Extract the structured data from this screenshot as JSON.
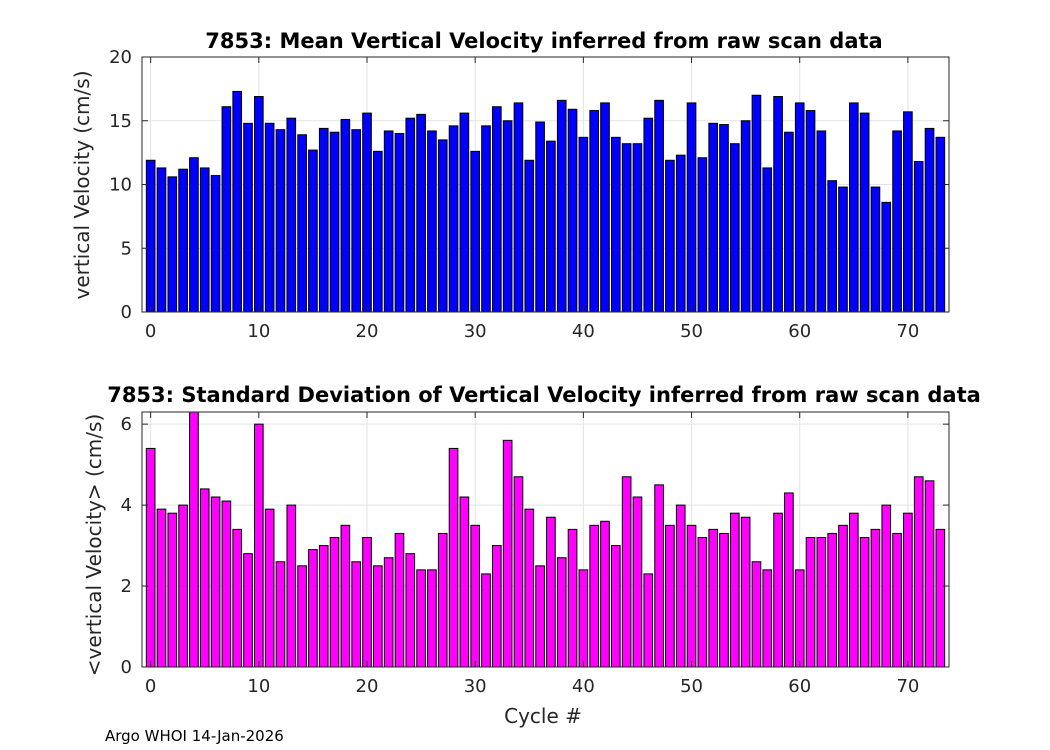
{
  "footer": "Argo WHOI 14-Jan-2026",
  "chart_data": [
    {
      "type": "bar",
      "title": "7853: Mean Vertical Velocity inferred from raw scan data",
      "xlabel": "",
      "ylabel": "vertical Velocity (cm/s)",
      "color": "#0000ff",
      "xlim": [
        -0.8,
        73.8
      ],
      "ylim": [
        0,
        20
      ],
      "xticks": [
        0,
        10,
        20,
        30,
        40,
        50,
        60,
        70
      ],
      "yticks": [
        0,
        5,
        10,
        15,
        20
      ],
      "grid": true,
      "x": [
        0,
        1,
        2,
        3,
        4,
        5,
        6,
        7,
        8,
        9,
        10,
        11,
        12,
        13,
        14,
        15,
        16,
        17,
        18,
        19,
        20,
        21,
        22,
        23,
        24,
        25,
        26,
        27,
        28,
        29,
        30,
        31,
        32,
        33,
        34,
        35,
        36,
        37,
        38,
        39,
        40,
        41,
        42,
        43,
        44,
        45,
        46,
        47,
        48,
        49,
        50,
        51,
        52,
        53,
        54,
        55,
        56,
        57,
        58,
        59,
        60,
        61,
        62,
        63,
        64,
        65,
        66,
        67,
        68,
        69,
        70,
        71,
        72,
        73
      ],
      "values": [
        11.9,
        11.3,
        10.6,
        11.2,
        12.1,
        11.3,
        10.7,
        16.1,
        17.3,
        14.8,
        16.9,
        14.8,
        14.3,
        15.2,
        13.9,
        12.7,
        14.4,
        14.1,
        15.1,
        14.3,
        15.6,
        12.6,
        14.2,
        14.0,
        15.2,
        15.5,
        14.2,
        13.5,
        14.6,
        15.6,
        12.6,
        14.6,
        16.1,
        15.0,
        16.4,
        11.9,
        14.9,
        13.4,
        16.6,
        15.9,
        13.7,
        15.8,
        16.4,
        13.7,
        13.2,
        13.2,
        15.2,
        16.6,
        11.9,
        12.3,
        16.4,
        12.1,
        14.8,
        14.7,
        13.2,
        15.0,
        17.0,
        11.3,
        16.9,
        14.1,
        16.4,
        15.8,
        14.2,
        10.3,
        9.8,
        16.4,
        15.6,
        9.8,
        8.6,
        14.2,
        15.7,
        11.8,
        14.4,
        13.7
      ]
    },
    {
      "type": "bar",
      "title": "7853: Standard Deviation of Vertical Velocity inferred from raw scan data",
      "xlabel": "Cycle #",
      "ylabel": "<vertical Velocity> (cm/s)",
      "color": "#ff00ff",
      "xlim": [
        -0.8,
        73.8
      ],
      "ylim": [
        0,
        6.3
      ],
      "xticks": [
        0,
        10,
        20,
        30,
        40,
        50,
        60,
        70
      ],
      "yticks": [
        0,
        2,
        4,
        6
      ],
      "grid": true,
      "x": [
        0,
        1,
        2,
        3,
        4,
        5,
        6,
        7,
        8,
        9,
        10,
        11,
        12,
        13,
        14,
        15,
        16,
        17,
        18,
        19,
        20,
        21,
        22,
        23,
        24,
        25,
        26,
        27,
        28,
        29,
        30,
        31,
        32,
        33,
        34,
        35,
        36,
        37,
        38,
        39,
        40,
        41,
        42,
        43,
        44,
        45,
        46,
        47,
        48,
        49,
        50,
        51,
        52,
        53,
        54,
        55,
        56,
        57,
        58,
        59,
        60,
        61,
        62,
        63,
        64,
        65,
        66,
        67,
        68,
        69,
        70,
        71,
        72,
        73
      ],
      "values": [
        5.4,
        3.9,
        3.8,
        4.0,
        6.3,
        4.4,
        4.2,
        4.1,
        3.4,
        2.8,
        6.0,
        3.9,
        2.6,
        4.0,
        2.5,
        2.9,
        3.0,
        3.2,
        3.5,
        2.6,
        3.2,
        2.5,
        2.7,
        3.3,
        2.8,
        2.4,
        2.4,
        3.3,
        5.4,
        4.2,
        3.5,
        2.3,
        3.0,
        5.6,
        4.7,
        3.9,
        2.5,
        3.7,
        2.7,
        3.4,
        2.4,
        3.5,
        3.6,
        3.0,
        4.7,
        4.2,
        2.3,
        4.5,
        3.5,
        4.0,
        3.5,
        3.2,
        3.4,
        3.3,
        3.8,
        3.7,
        2.6,
        2.4,
        3.8,
        4.3,
        2.4,
        3.2,
        3.2,
        3.3,
        3.5,
        3.8,
        3.2,
        3.4,
        4.0,
        3.3,
        3.8,
        4.7,
        4.6,
        3.4
      ]
    }
  ]
}
